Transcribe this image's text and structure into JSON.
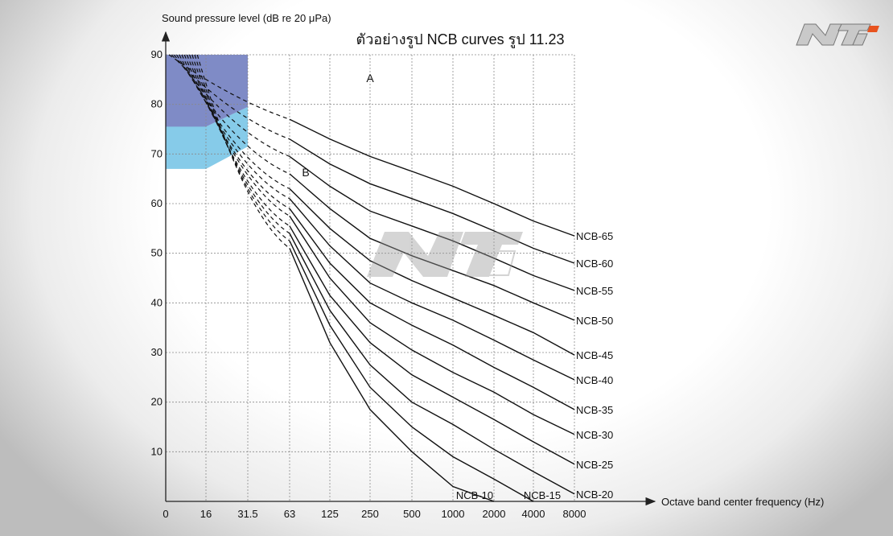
{
  "chart_data": {
    "type": "line",
    "title": "ตัวอย่างรูป NCB curves รูป 11.23",
    "ylabel": "Sound pressure level (dB re 20 μPa)",
    "xlabel": "Octave band center frequency (Hz)",
    "categories": [
      "0",
      "16",
      "31.5",
      "63",
      "125",
      "250",
      "500",
      "1000",
      "2000",
      "4000",
      "8000"
    ],
    "y_ticks": [
      10,
      20,
      30,
      40,
      50,
      60,
      70,
      80,
      90
    ],
    "ylim": [
      0,
      90
    ],
    "grid": true,
    "regions": [
      {
        "label": "A",
        "color": "#7f8bc6"
      },
      {
        "label": "B",
        "color": "#86cbe9"
      }
    ],
    "series": [
      {
        "name": "NCB-65",
        "values": [
          null,
          null,
          null,
          77,
          73,
          69.5,
          66.5,
          63.5,
          60,
          56.5,
          53.5
        ]
      },
      {
        "name": "NCB-60",
        "values": [
          null,
          null,
          null,
          73,
          68,
          64,
          61,
          58,
          54.5,
          51,
          48
        ]
      },
      {
        "name": "NCB-55",
        "values": [
          null,
          null,
          null,
          69.5,
          63.5,
          58.5,
          55.5,
          52.5,
          49,
          45.5,
          42.5
        ]
      },
      {
        "name": "NCB-50",
        "values": [
          null,
          null,
          null,
          66,
          59,
          53,
          49.5,
          46.5,
          43.5,
          40,
          36.5
        ]
      },
      {
        "name": "NCB-45",
        "values": [
          null,
          null,
          null,
          63,
          55,
          48.5,
          44.5,
          41,
          37.5,
          34,
          29.5
        ]
      },
      {
        "name": "NCB-40",
        "values": [
          null,
          null,
          null,
          61,
          51.5,
          44,
          40,
          36.5,
          32.5,
          28.5,
          24.5
        ]
      },
      {
        "name": "NCB-35",
        "values": [
          null,
          null,
          null,
          59,
          48,
          40,
          35.5,
          31.5,
          27,
          23,
          18.5
        ]
      },
      {
        "name": "NCB-30",
        "values": [
          null,
          null,
          null,
          57.5,
          45,
          36,
          30.5,
          26,
          22,
          17.5,
          13.5
        ]
      },
      {
        "name": "NCB-25",
        "values": [
          null,
          null,
          null,
          55.5,
          41.5,
          32,
          25.5,
          21,
          16.5,
          12,
          7.5
        ]
      },
      {
        "name": "NCB-20",
        "values": [
          null,
          null,
          null,
          54,
          38.5,
          27.5,
          20,
          15.5,
          10.5,
          6,
          1.5
        ]
      },
      {
        "name": "NCB-15",
        "values": [
          null,
          null,
          null,
          52.5,
          35.5,
          23,
          15,
          9,
          4.5,
          0,
          null
        ]
      },
      {
        "name": "NCB-10",
        "values": [
          null,
          null,
          null,
          51,
          32,
          18.5,
          10,
          3,
          0,
          null,
          null
        ]
      }
    ]
  },
  "logo": {
    "text": "NTi"
  }
}
